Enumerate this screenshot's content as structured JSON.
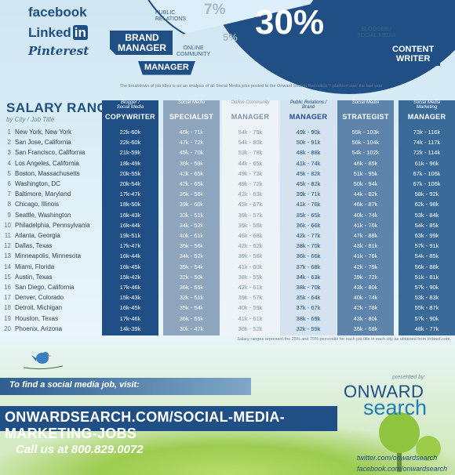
{
  "social": {
    "facebook": "facebook",
    "linkedin_text": "Linked",
    "linkedin_in": "in",
    "pinterest": "Pinterest"
  },
  "pie": {
    "big_pct": "30%",
    "pct_7": "7%",
    "pct_5": "5%",
    "labels": {
      "public_relations": "PUBLIC\nRELATIONS",
      "brand_manager": "BRAND\nMANAGER",
      "online_community": "ONLINE\nCOMMUNITY",
      "manager": "MANAGER",
      "blogger_social": "BLOGGER /\nSOCIAL MEDIA",
      "content_writer": "CONTENT\nWRITER"
    },
    "breakdown_note": "The breakdown of job titles is on an analysis of all Social Media jobs posted to the Onward Search Recruitics™ platform over the last year"
  },
  "salary": {
    "title": "SALARY RANGES",
    "subtitle": "by City / Job Title",
    "columns": [
      {
        "role": "Blogger /\nSocial Media",
        "cap": "COPYWRITER",
        "bg": "#1f4f84",
        "fg": "#ffffff"
      },
      {
        "role": "Social Media",
        "cap": "SPECIALIST",
        "bg": "#8ea6bd",
        "fg": "#ffffff"
      },
      {
        "role": "Online Community",
        "cap": "MANAGER",
        "bg": "#eef3f7",
        "fg": "#7f97ad"
      },
      {
        "role": "Public Relations /\nBrand",
        "cap": "MANAGER",
        "bg": "#d4e3ef",
        "fg": "#1f4f84"
      },
      {
        "role": "Social Media",
        "cap": "STRATEGIST",
        "bg": "#5d84ab",
        "fg": "#ffffff"
      },
      {
        "role": "Social Media\nMarketing",
        "cap": "MANAGER",
        "bg": "#3a6a98",
        "fg": "#ffffff"
      }
    ],
    "rows": [
      {
        "n": "1",
        "city": "New York, New York",
        "vals": [
          "22k-60k",
          "46k - 71k",
          "54k - 79k",
          "49k - 90k",
          "55k - 103k",
          "73k - 116k"
        ]
      },
      {
        "n": "2",
        "city": "San Jose, California",
        "vals": [
          "22k-60k",
          "47k - 72k",
          "54k - 80k",
          "50k - 91k",
          "56k - 104k",
          "74k - 117k"
        ]
      },
      {
        "n": "3",
        "city": "San Francisco, California",
        "vals": [
          "21k-59k",
          "45k - 70k",
          "53k - 78k",
          "48k - 88k",
          "54k - 102k",
          "72k - 114k"
        ]
      },
      {
        "n": "4",
        "city": "Los Angeles, California",
        "vals": [
          "18k-49k",
          "38k - 59k",
          "44k - 65k",
          "41k - 74k",
          "46k - 85k",
          "61k - 96k"
        ]
      },
      {
        "n": "5",
        "city": "Boston, Massachusetts",
        "vals": [
          "20k-55k",
          "42k - 65k",
          "49k - 73k",
          "45k - 82k",
          "51k - 95k",
          "67k - 106k"
        ]
      },
      {
        "n": "6",
        "city": "Washington, DC",
        "vals": [
          "20k-54k",
          "42k - 65k",
          "49k - 72k",
          "45k - 82k",
          "50k - 94k",
          "67k - 106k"
        ]
      },
      {
        "n": "7",
        "city": "Baltimore, Maryland",
        "vals": [
          "17k-47k",
          "36k - 56k",
          "42k - 63k",
          "39k - 71k",
          "44k - 82k",
          "58k - 92k"
        ]
      },
      {
        "n": "8",
        "city": "Chicago, Illinois",
        "vals": [
          "18k-50k",
          "39k - 60k",
          "45k - 67k",
          "41k - 76k",
          "46k - 87k",
          "62k - 98k"
        ]
      },
      {
        "n": "9",
        "city": "Seattle, Washington",
        "vals": [
          "16k-43k",
          "33k - 51k",
          "39k - 57k",
          "35k - 65k",
          "40k - 74k",
          "53k - 84k"
        ]
      },
      {
        "n": "10",
        "city": "Philadelphia, Pennsylvania",
        "vals": [
          "16k-44k",
          "34k - 52k",
          "39k - 58k",
          "36k - 66k",
          "41k - 76k",
          "54k - 85k"
        ]
      },
      {
        "n": "11",
        "city": "Atlanta, Georgia",
        "vals": [
          "19k-51k",
          "40k - 61k",
          "46k - 68k",
          "42k - 77k",
          "47k - 88k",
          "63k - 99k"
        ]
      },
      {
        "n": "12",
        "city": "Dallas, Texas",
        "vals": [
          "17k-47k",
          "36k - 56k",
          "42k - 62k",
          "38k - 70k",
          "43k - 81k",
          "57k - 91k"
        ]
      },
      {
        "n": "13",
        "city": "Minneapolis, Minnesota",
        "vals": [
          "16k-44k",
          "34k - 52k",
          "39k - 58k",
          "36k - 66k",
          "41k - 76k",
          "54k - 85k"
        ]
      },
      {
        "n": "14",
        "city": "Miami, Florida",
        "vals": [
          "16k-45k",
          "35k - 54k",
          "41k - 60k",
          "37k - 68k",
          "42k - 79k",
          "56k - 88k"
        ]
      },
      {
        "n": "15",
        "city": "Austin, Texas",
        "vals": [
          "15k-42k",
          "32k - 50k",
          "38k - 55k",
          "34k - 63k",
          "39k - 72k",
          "51k - 81k"
        ]
      },
      {
        "n": "16",
        "city": "San Diego, California",
        "vals": [
          "17k-46k",
          "36k - 55k",
          "42k - 61k",
          "38k - 70k",
          "43k - 80k",
          "57k - 90k"
        ]
      },
      {
        "n": "17",
        "city": "Denver, Colorado",
        "vals": [
          "15k-43k",
          "33k - 51k",
          "39k - 57k",
          "35k - 64k",
          "40k - 74k",
          "53k - 83k"
        ]
      },
      {
        "n": "18",
        "city": "Detroit, Michigan",
        "vals": [
          "16k-45k",
          "35k - 54k",
          "40k - 59k",
          "37k - 67k",
          "42k - 78k",
          "55k - 87k"
        ]
      },
      {
        "n": "19",
        "city": "Houston, Texas",
        "vals": [
          "17k-46k",
          "36k - 55k",
          "41k - 61k",
          "38k - 69k",
          "43k - 80k",
          "57k - 90k"
        ]
      },
      {
        "n": "20",
        "city": "Phoenix, Arizona",
        "vals": [
          "14k-39k",
          "30k - 47k",
          "36k - 52k",
          "32k - 59k",
          "36k - 68k",
          "48k - 77k"
        ]
      }
    ],
    "note": "Salary ranges represent the 25% and 75% percentile for each job title in each city as obtained from Indeed.com."
  },
  "footer": {
    "visit_text": "To find a social media job, visit:",
    "url": "ONWARDSEARCH.COM/SOCIAL-MEDIA-MARKETING-JOBS",
    "call_prefix": "Call us at ",
    "phone": "800.829.0072",
    "presented_by": "presented by:",
    "logo_onward": "ONWARD",
    "logo_search": "search",
    "twitter": "twitter.com/onwardsearch",
    "facebook": "facebook.com/onwardsearch"
  },
  "icons": {
    "bird": "bird-icon",
    "tree": "tree-icon"
  }
}
